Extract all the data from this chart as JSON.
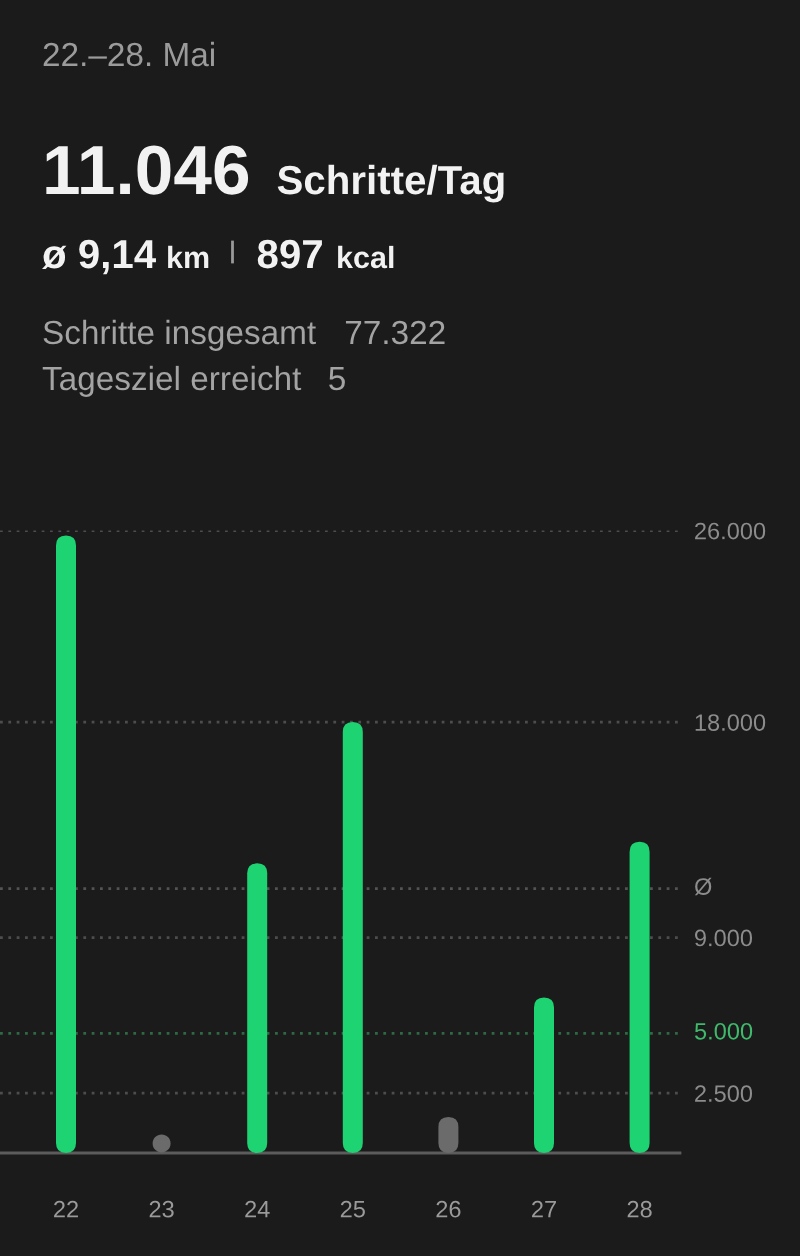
{
  "chart_data": {
    "type": "bar",
    "title": "22.–28. Mai",
    "annotations": [
      "11.046",
      "Schritte/Tag",
      "ø 9,14",
      "km",
      "897",
      "kcal",
      "Schritte insgesamt",
      "77.322",
      "Tagesziel erreicht",
      "5"
    ],
    "categories": [
      "22",
      "23",
      "24",
      "25",
      "26",
      "27",
      "28"
    ],
    "series": [
      {
        "values": [
          25800,
          null,
          12100,
          18000,
          1500,
          6500,
          13000
        ],
        "colors": [
          "#1ed371",
          "#6b6b6b",
          "#1ed371",
          "#1ed371",
          "#6b6b6b",
          "#1ed371",
          "#1ed371"
        ]
      },
      {
        "type": "scatter",
        "values": [
          null,
          400,
          null,
          null,
          null,
          null,
          null
        ],
        "color": "#6b6b6b",
        "marker": "circle"
      }
    ],
    "ylim": [
      0,
      26000
    ],
    "yticks": [
      {
        "value": 2500,
        "label": "2.500"
      },
      {
        "value": 9000,
        "label": "9.000"
      },
      {
        "value": 18000,
        "label": "18.000"
      },
      {
        "value": 26000,
        "label": "26.000"
      }
    ],
    "ref_lines": [
      {
        "axis": "y",
        "value": 11046,
        "label": "Ø",
        "color": "#8c8c8c",
        "line_style": "dotted"
      },
      {
        "axis": "y",
        "value": 5000,
        "label": "5.000",
        "color": "#3fb96b",
        "line_style": "dotted"
      }
    ],
    "grid": "y"
  }
}
